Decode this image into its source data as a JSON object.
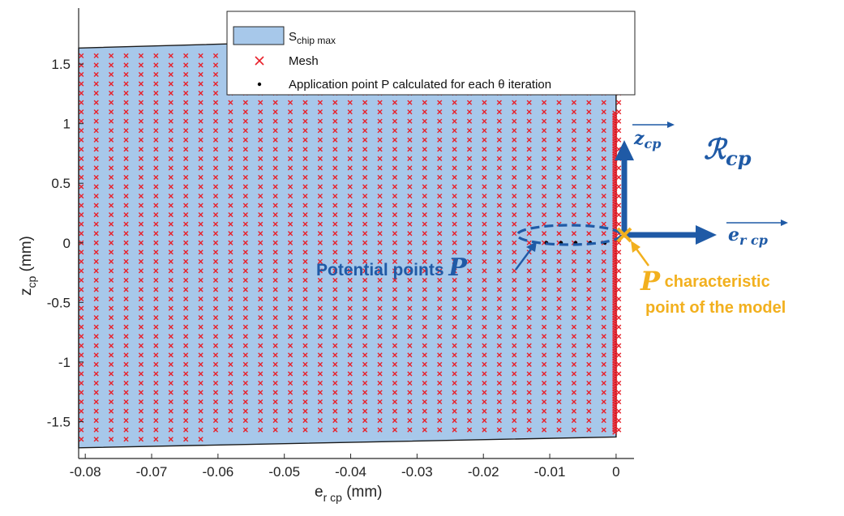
{
  "chart_data": {
    "type": "scatter",
    "xlabel": {
      "main": "e",
      "sub": "r cp",
      "unit": " (mm)"
    },
    "ylabel": {
      "main": "z",
      "sub": "cp",
      "unit": " (mm)"
    },
    "xlim": [
      -0.081,
      0.0027
    ],
    "ylim": [
      -1.81,
      1.97
    ],
    "xticks": [
      -0.08,
      -0.07,
      -0.06,
      -0.05,
      -0.04,
      -0.03,
      -0.02,
      -0.01,
      0
    ],
    "xtick_labels": [
      "-0.08",
      "-0.07",
      "-0.06",
      "-0.05",
      "-0.04",
      "-0.03",
      "-0.02",
      "-0.01",
      "0"
    ],
    "yticks": [
      -1.5,
      -1,
      -0.5,
      0,
      0.5,
      1,
      1.5
    ],
    "ytick_labels": [
      "-1.5",
      "-1",
      "-0.5",
      "0",
      "0.5",
      "1",
      "1.5"
    ],
    "grid": false,
    "legend_position": "top-center",
    "region": {
      "name": "S",
      "name_sub": "chip max",
      "polygon": [
        [
          -0.081,
          1.635
        ],
        [
          0,
          1.76
        ],
        [
          0,
          -1.63
        ],
        [
          -0.081,
          -1.72
        ]
      ],
      "fill": "#a7c8ea",
      "edge": "#1a1a1a"
    },
    "mesh": {
      "name": "Mesh",
      "color": "#e8202a",
      "marker": "x",
      "x_start": -0.0806,
      "x_step": 0.00225,
      "n_columns": 37,
      "row_step": 0.0785
    },
    "mesh_extra_column": {
      "x": -0.0002,
      "step": 0.02
    },
    "application_points": {
      "name": "Application point P calculated for each θ iteration",
      "color": "#000000",
      "marker": "dot",
      "x": [
        -0.0105,
        -0.0083,
        -0.0061,
        -0.0039,
        -0.0017
      ],
      "y": [
        0,
        0,
        0,
        0,
        0
      ]
    },
    "characteristic_point": {
      "x": 0,
      "y": 0,
      "color": "#f2b01e"
    }
  },
  "annotations": {
    "potential_points_text": "Potential points ",
    "potential_points_letter": "P",
    "char_point_letter": "P",
    "char_point_line1": " characteristic",
    "char_point_line2": "point of the model",
    "frame_label_main": "ℛ",
    "frame_label_sub": "cp",
    "z_vector_main": "z",
    "z_vector_sub": "cp",
    "er_vector_main": "e",
    "er_vector_sub": "r cp"
  },
  "colors": {
    "blue": "#1f5aa6",
    "orange": "#f2b01e",
    "mesh_red": "#e8202a",
    "region": "#a7c8ea"
  }
}
